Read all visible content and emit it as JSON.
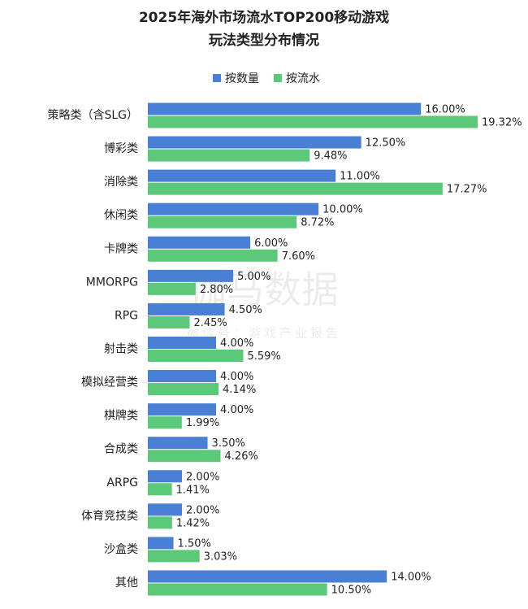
{
  "chart_data": {
    "type": "bar",
    "orientation": "horizontal",
    "title": [
      "2025年海外市场流水TOP200移动游戏",
      "玩法类型分布情况"
    ],
    "watermark": [
      "伽马数据",
      "微信号：游戏产业报告"
    ],
    "categories": [
      "策略类（含SLG）",
      "博彩类",
      "消除类",
      "休闲类",
      "卡牌类",
      "MMORPG",
      "RPG",
      "射击类",
      "模拟经营类",
      "棋牌类",
      "合成类",
      "ARPG",
      "体育竞技类",
      "沙盒类",
      "其他"
    ],
    "series": [
      {
        "name": "按数量",
        "color": "#4a7fd6",
        "values": [
          16,
          12.5,
          11,
          10,
          6,
          5,
          4.5,
          4,
          4,
          4,
          3.5,
          2,
          2,
          1.5,
          14
        ],
        "value_labels": [
          "16.00%",
          "12.50%",
          "11.00%",
          "10.00%",
          "6.00%",
          "5.00%",
          "4.50%",
          "4.00%",
          "4.00%",
          "4.00%",
          "3.50%",
          "2.00%",
          "2.00%",
          "1.50%",
          "14.00%"
        ]
      },
      {
        "name": "按流水",
        "color": "#5cc87a",
        "values": [
          19.32,
          9.48,
          17.27,
          8.72,
          7.6,
          2.8,
          2.45,
          5.59,
          4.14,
          1.99,
          4.26,
          1.41,
          1.42,
          3.03,
          10.5
        ],
        "value_labels": [
          "19.32%",
          "9.48%",
          "17.27%",
          "8.72%",
          "7.60%",
          "2.80%",
          "2.45%",
          "5.59%",
          "4.14%",
          "1.99%",
          "4.26%",
          "1.41%",
          "1.42%",
          "3.03%",
          "10.50%"
        ]
      }
    ],
    "legend": "top"
  }
}
